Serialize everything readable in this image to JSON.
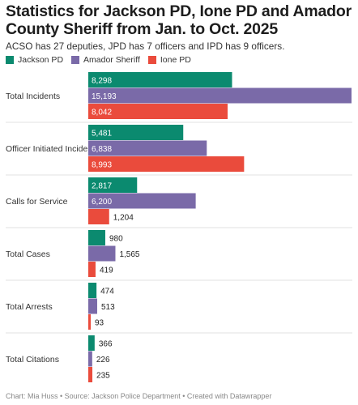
{
  "title": "Statistics for Jackson PD, Ione PD and Amador County Sheriff from Jan. to Oct. 2025",
  "subtitle": "ACSO has 27 deputies, JPD has 7 officers and IPD has 9 officers.",
  "footer": "Chart: Mia Huss • Source: Jackson Police Department • Created with Datawrapper",
  "chart_data": {
    "type": "bar",
    "orientation": "horizontal",
    "grouped": true,
    "categories": [
      "Total Incidents",
      "Officer Initiated Incidents",
      "Calls for Service",
      "Total Cases",
      "Total Arrests",
      "Total Citations"
    ],
    "series": [
      {
        "name": "Jackson PD",
        "color": "#0b8a6f",
        "values": [
          8298,
          5481,
          2817,
          980,
          474,
          366
        ],
        "labels": [
          "8,298",
          "5,481",
          "2,817",
          "980",
          "474",
          "366"
        ]
      },
      {
        "name": "Amador Sheriff",
        "color": "#7a6aa8",
        "values": [
          15193,
          6838,
          6200,
          1565,
          513,
          226
        ],
        "labels": [
          "15,193",
          "6,838",
          "6,200",
          "1,565",
          "513",
          "226"
        ]
      },
      {
        "name": "Ione PD",
        "color": "#ea4b3c",
        "values": [
          8042,
          8993,
          1204,
          419,
          93,
          235
        ],
        "labels": [
          "8,042",
          "8,993",
          "1,204",
          "419",
          "93",
          "235"
        ]
      }
    ],
    "xlim": [
      0,
      15193
    ],
    "legend": "top-left",
    "grid": false
  }
}
